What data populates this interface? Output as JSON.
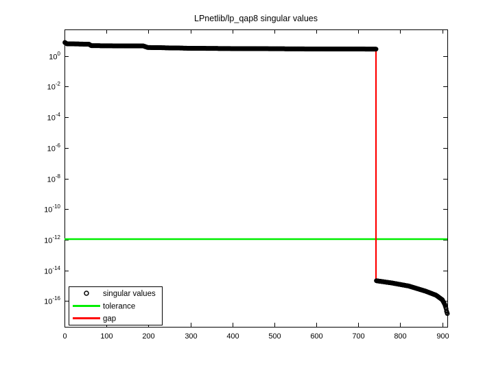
{
  "page": {
    "background": "#ffffff"
  },
  "chart_data": {
    "type": "scatter",
    "title": "LPnetlib/lp_qap8 singular values",
    "xlabel": "",
    "ylabel": "",
    "x_axis_scale": "linear",
    "y_axis_scale": "log",
    "xlim": [
      0,
      912
    ],
    "ylim": [
      2e-18,
      54
    ],
    "x_ticks": [
      0,
      100,
      200,
      300,
      400,
      500,
      600,
      700,
      800,
      900
    ],
    "y_tick_base": 10,
    "y_tick_exponents": [
      0,
      -2,
      -4,
      -6,
      -8,
      -10,
      -12,
      -14,
      -16
    ],
    "grid": false,
    "box": true,
    "axis_color": "#000000",
    "legend": {
      "position": "southwest",
      "entries": [
        {
          "label": "singular values",
          "marker": "circle",
          "color": "#000000"
        },
        {
          "label": "tolerance",
          "marker": "line",
          "color": "#00ee00"
        },
        {
          "label": "gap",
          "marker": "line",
          "color": "#ff0000"
        }
      ]
    },
    "series": [
      {
        "name": "singular values",
        "type": "scatter",
        "marker": "o",
        "color": "#000000",
        "count": 912,
        "bands": [
          {
            "description": "numerically nonzero singular values (indices 1-742)",
            "anchors": [
              [
                1,
                7.6
              ],
              [
                6,
                6.2
              ],
              [
                58,
                5.9
              ],
              [
                64,
                4.7
              ],
              [
                188,
                4.5
              ],
              [
                198,
                3.6
              ],
              [
                310,
                3.15
              ],
              [
                500,
                2.95
              ],
              [
                742,
                2.8
              ]
            ]
          },
          {
            "description": "numerically zero singular values (indices 743-912)",
            "anchors": [
              [
                743,
                2.1e-15
              ],
              [
                780,
                1.5e-15
              ],
              [
                820,
                9.5e-16
              ],
              [
                860,
                4.4e-16
              ],
              [
                885,
                2.4e-16
              ],
              [
                900,
                1.2e-16
              ],
              [
                906,
                6e-17
              ],
              [
                909,
                3.2e-17
              ],
              [
                910,
                2.2e-17
              ],
              [
                912,
                1.5e-17
              ]
            ]
          }
        ]
      },
      {
        "name": "tolerance",
        "type": "hline",
        "y": 1.1e-12,
        "color": "#00ee00",
        "linewidth": 2.5
      },
      {
        "name": "gap",
        "type": "vline",
        "x": 742,
        "y_top": 2.8,
        "y_bottom": 2.1e-15,
        "color": "#ff0000",
        "linewidth": 2.2
      }
    ]
  }
}
